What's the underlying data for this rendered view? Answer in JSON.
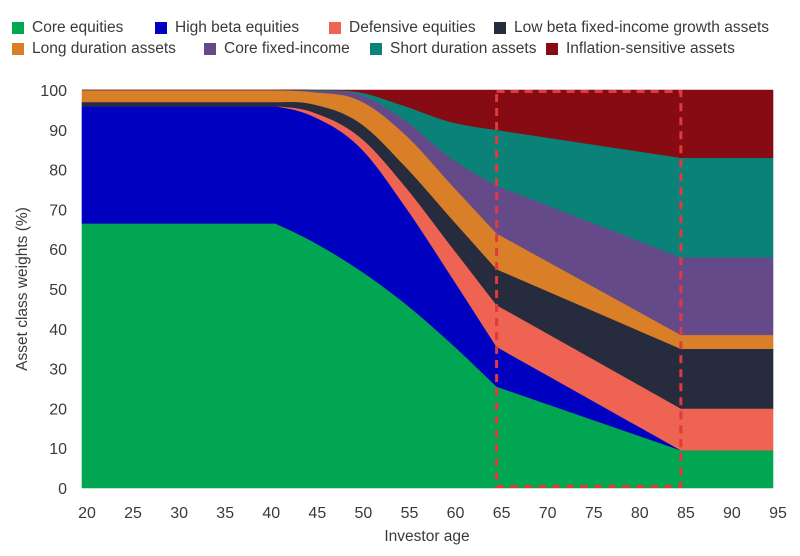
{
  "chart_data": {
    "type": "area",
    "stacked": true,
    "title": "",
    "xlabel": "Investor age",
    "ylabel": "Asset class weights (%)",
    "xlim": [
      20,
      95
    ],
    "ylim": [
      0,
      100
    ],
    "xticks": [
      20,
      25,
      30,
      35,
      40,
      45,
      50,
      55,
      60,
      65,
      70,
      75,
      80,
      85,
      90,
      95
    ],
    "yticks": [
      0,
      10,
      20,
      30,
      40,
      50,
      60,
      70,
      80,
      90,
      100
    ],
    "grid": false,
    "legend_position": "top",
    "x": [
      20,
      41,
      45,
      50,
      55,
      60,
      65,
      85,
      95
    ],
    "series": [
      {
        "name": "Core equities",
        "color": "#00a651",
        "values": [
          66.5,
          66.5,
          62,
          55,
          46.5,
          36.5,
          25.5,
          9.5,
          9.5
        ]
      },
      {
        "name": "High beta equities",
        "color": "#0000c0",
        "values": [
          29.5,
          29.5,
          31.5,
          31,
          24.5,
          17,
          10,
          0,
          0
        ]
      },
      {
        "name": "Defensive equities",
        "color": "#ee6352",
        "values": [
          0,
          0,
          1,
          2.5,
          5,
          7.5,
          10.5,
          10.5,
          10.5
        ]
      },
      {
        "name": "Low beta fixed-income growth assets",
        "color": "#262b3d",
        "values": [
          1,
          1,
          2,
          3.5,
          5,
          7,
          9,
          15,
          15
        ]
      },
      {
        "name": "Long duration assets",
        "color": "#d97f27",
        "values": [
          3,
          3,
          3,
          5.5,
          8,
          8.5,
          9,
          3.5,
          3.5
        ]
      },
      {
        "name": "Core fixed-income",
        "color": "#654a8a",
        "values": [
          0,
          0,
          0.3,
          1.5,
          3.5,
          6.5,
          12,
          19.5,
          19.5
        ]
      },
      {
        "name": "Short duration assets",
        "color": "#0a8277",
        "values": [
          0,
          0,
          0.2,
          0.5,
          3.5,
          9,
          14,
          25,
          25
        ]
      },
      {
        "name": "Inflation-sensitive assets",
        "color": "#860b12",
        "values": [
          0,
          0,
          0,
          0.5,
          4,
          8,
          10,
          17,
          17
        ]
      }
    ],
    "annotations": [
      {
        "type": "dashed-box",
        "x_range": [
          65,
          85
        ],
        "y_range": [
          0,
          100
        ],
        "color": "#e0393e"
      }
    ]
  },
  "legend": {
    "rows": [
      [
        "Core equities",
        "High beta equities",
        "Defensive equities",
        "Low beta fixed-income growth assets"
      ],
      [
        "Long duration assets",
        "Core fixed-income",
        "Short duration assets",
        "Inflation-sensitive assets"
      ]
    ]
  }
}
